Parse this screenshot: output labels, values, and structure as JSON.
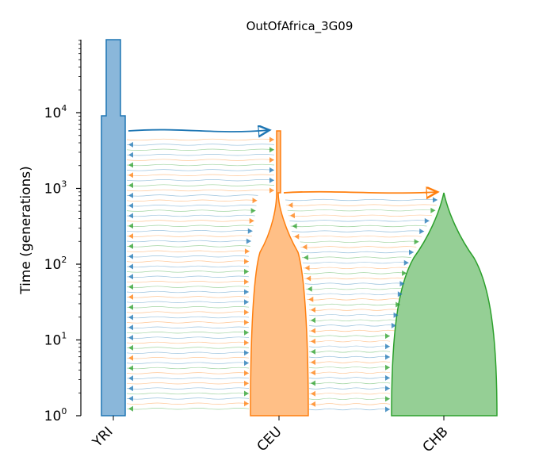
{
  "title": "OutOfAfrica_3G09",
  "y_axis": {
    "label": "Time (generations)",
    "scale": "log",
    "ticks": [
      {
        "base": "10",
        "exp": "0"
      },
      {
        "base": "10",
        "exp": "1"
      },
      {
        "base": "10",
        "exp": "2"
      },
      {
        "base": "10",
        "exp": "3"
      },
      {
        "base": "10",
        "exp": "4"
      }
    ]
  },
  "demes": [
    {
      "name": "YRI",
      "color": "#1f77b4",
      "fill": "#8ab7da"
    },
    {
      "name": "CEU",
      "color": "#ff7f0e",
      "fill": "#ffbf86"
    },
    {
      "name": "CHB",
      "color": "#2ca02c",
      "fill": "#95cf95"
    }
  ]
}
